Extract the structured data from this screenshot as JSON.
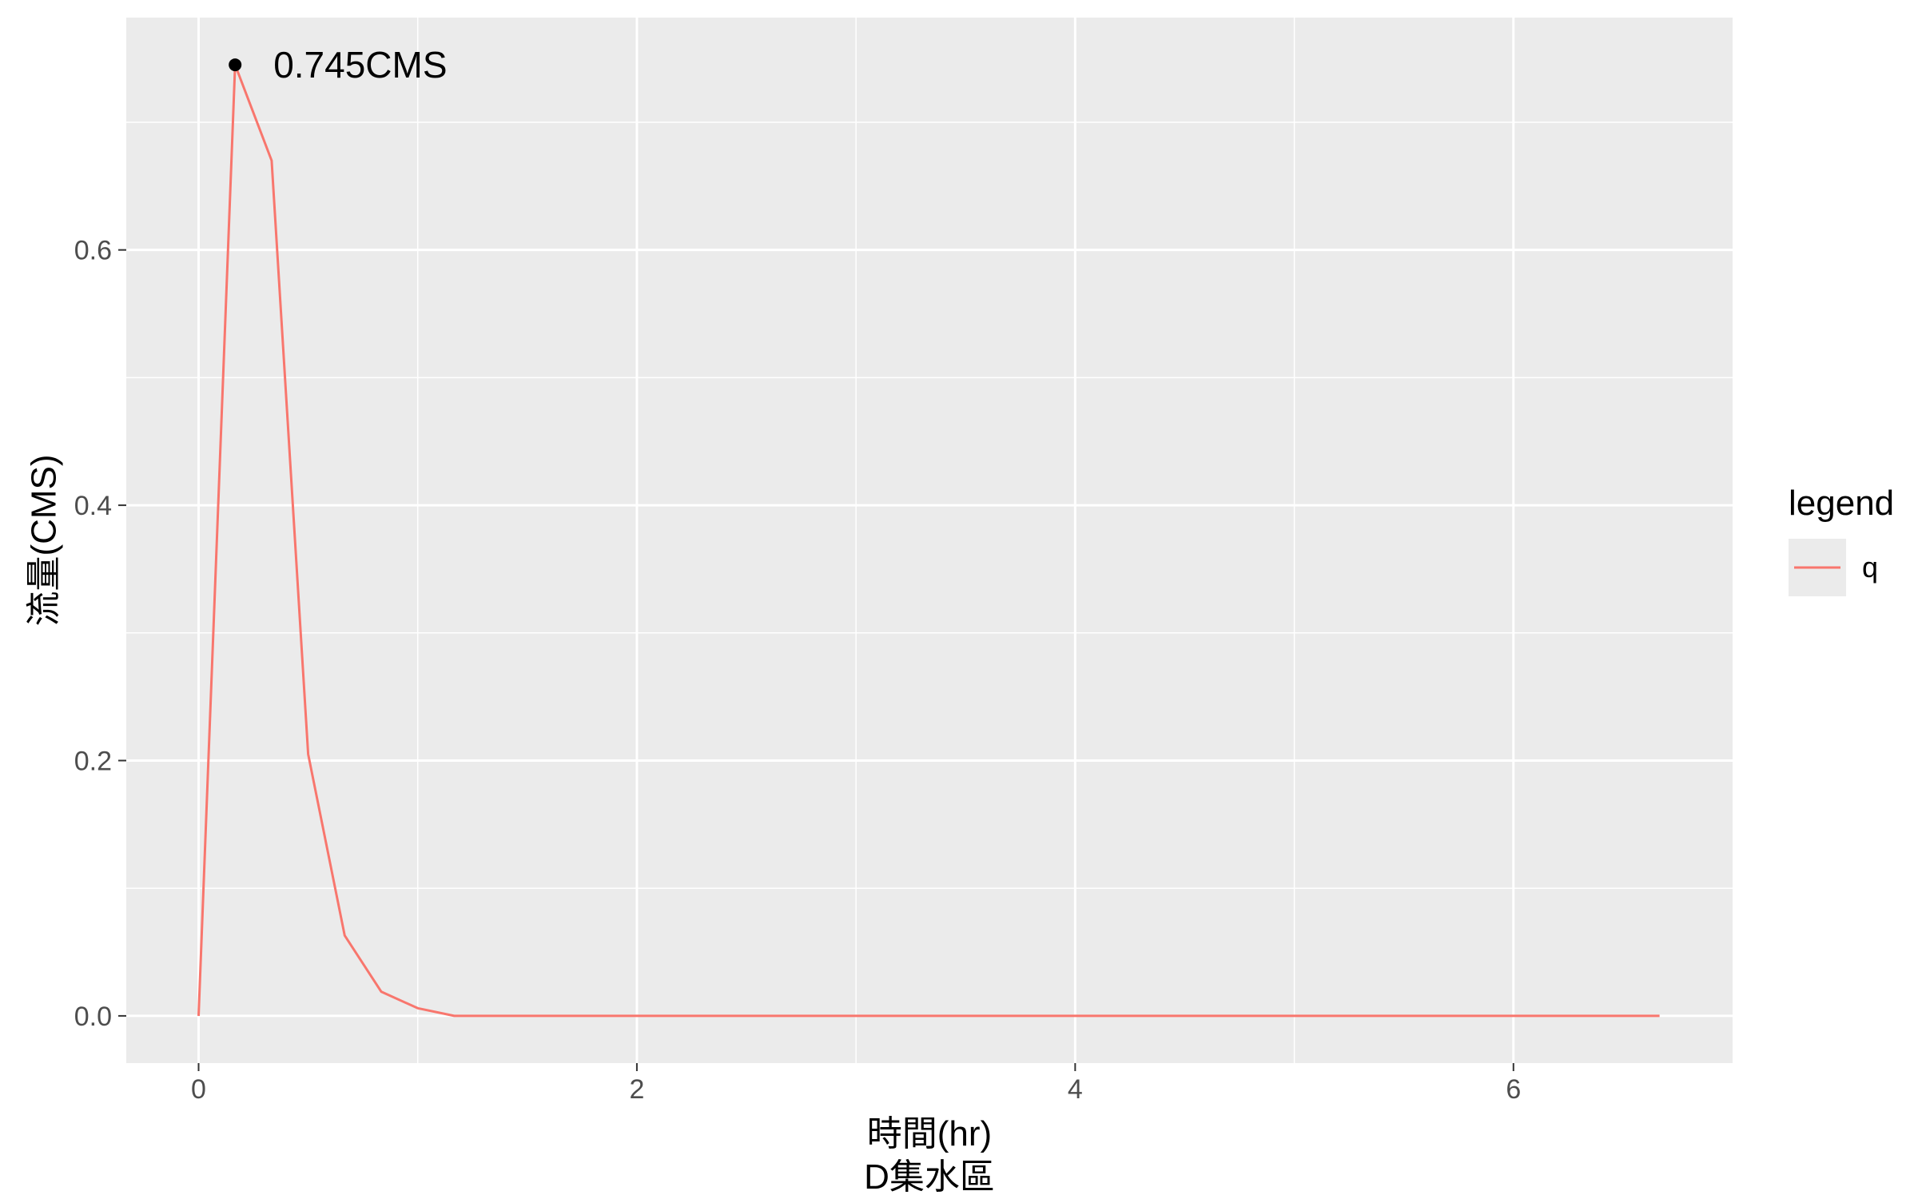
{
  "chart_data": {
    "type": "line",
    "xlabel": "時間(hr)",
    "subtitle_below_xlabel": "D集水區",
    "ylabel": "流量(CMS)",
    "xlim": [
      -0.33,
      7.0
    ],
    "ylim": [
      -0.037,
      0.782
    ],
    "x_ticks": [
      0,
      2,
      4,
      6
    ],
    "x_tick_labels": [
      "0",
      "2",
      "4",
      "6"
    ],
    "y_ticks": [
      0.0,
      0.2,
      0.4,
      0.6
    ],
    "y_tick_labels": [
      "0.0",
      "0.2",
      "0.4",
      "0.6"
    ],
    "grid": true,
    "legend": {
      "title": "legend",
      "position": "right",
      "entries": [
        "q"
      ]
    },
    "series": [
      {
        "name": "q",
        "color": "#F8766D",
        "x": [
          0,
          0.1667,
          0.3333,
          0.5,
          0.6667,
          0.8333,
          1.0,
          1.1667,
          1.3333,
          1.5,
          2.0,
          3.0,
          4.0,
          5.0,
          6.0,
          6.6667
        ],
        "y": [
          0.0,
          0.745,
          0.67,
          0.205,
          0.063,
          0.019,
          0.006,
          0.0,
          0.0,
          0.0,
          0.0,
          0.0,
          0.0,
          0.0,
          0.0,
          0.0
        ]
      }
    ],
    "annotation": {
      "x": 0.1667,
      "y": 0.745,
      "text": "0.745CMS",
      "marker_color": "#000000"
    }
  }
}
